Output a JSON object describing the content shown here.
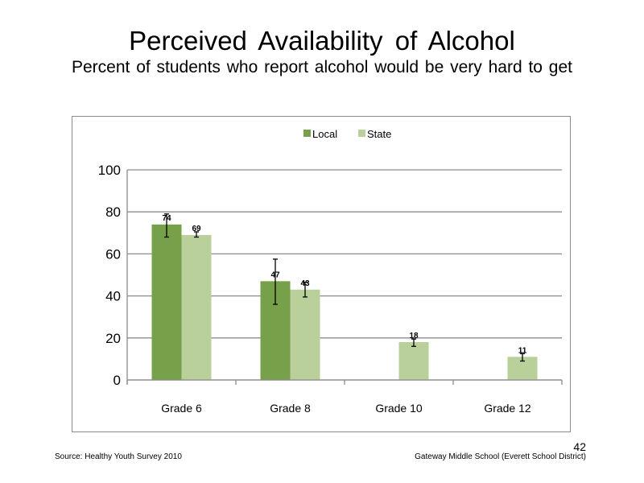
{
  "slide": {
    "title": "Perceived  Availability  of Alcohol",
    "subtitle": "Percent of students  who report alcohol would be very hard to get",
    "source": "Source: Healthy  Youth Survey 2010",
    "school": "Gateway Middle  School  (Everett School District)",
    "page_number": "42"
  },
  "chart_data": {
    "type": "bar",
    "title": "",
    "xlabel": "",
    "ylabel": "",
    "categories": [
      "Grade 6",
      "Grade 8",
      "Grade 10",
      "Grade 12"
    ],
    "ylim": [
      0,
      100
    ],
    "yticks": [
      0,
      20,
      40,
      60,
      80,
      100
    ],
    "grid": true,
    "legend_position": "top",
    "series": [
      {
        "name": "Local",
        "color": "#77a04a",
        "values": [
          74,
          47,
          null,
          null
        ],
        "labels": [
          "74",
          "47",
          "",
          ""
        ],
        "error_bars": [
          [
            68,
            79
          ],
          [
            36,
            57.5
          ],
          null,
          null
        ]
      },
      {
        "name": "State",
        "color": "#b9d09a",
        "values": [
          69,
          43,
          18,
          11
        ],
        "labels": [
          "69",
          "43",
          "18",
          "11"
        ],
        "error_bars": [
          [
            68,
            70.5
          ],
          [
            39.5,
            46.5
          ],
          [
            16,
            19.5
          ],
          [
            9,
            12.5
          ]
        ]
      }
    ]
  }
}
